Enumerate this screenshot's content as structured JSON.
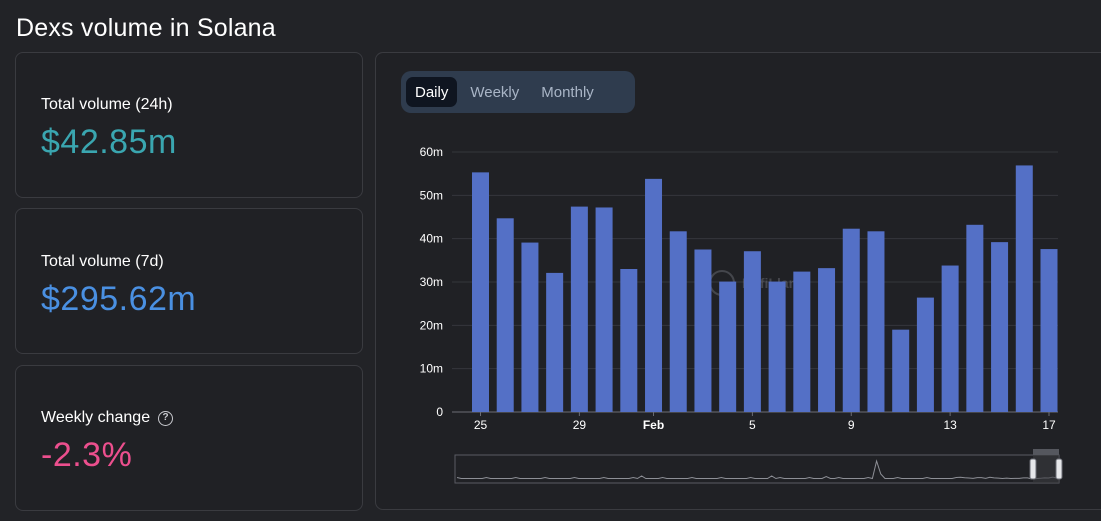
{
  "page": {
    "title": "Dexs volume in Solana"
  },
  "stats": [
    {
      "label": "Total volume (24h)",
      "value": "$42.85m",
      "color": "#3aa6b0"
    },
    {
      "label": "Total volume (7d)",
      "value": "$295.62m",
      "color": "#4a90e2"
    },
    {
      "label": "Weekly change",
      "value": "-2.3%",
      "color": "#ec4f8e",
      "icon": "help-circle-icon"
    }
  ],
  "tabs": [
    {
      "label": "Daily",
      "active": true
    },
    {
      "label": "Weekly",
      "active": false
    },
    {
      "label": "Monthly",
      "active": false
    }
  ],
  "chart_data": {
    "type": "bar",
    "title": "",
    "xlabel": "",
    "ylabel": "",
    "ylim": [
      0,
      60
    ],
    "yticks": [
      "0",
      "10m",
      "20m",
      "30m",
      "40m",
      "50m",
      "60m"
    ],
    "ytick_values": [
      0,
      10,
      20,
      30,
      40,
      50,
      60
    ],
    "grid": true,
    "color": "#5470c6",
    "categories": [
      "Jan 25",
      "Jan 26",
      "Jan 27",
      "Jan 28",
      "Jan 29",
      "Jan 30",
      "Jan 31",
      "Feb 1",
      "Feb 2",
      "Feb 3",
      "Feb 4",
      "Feb 5",
      "Feb 6",
      "Feb 7",
      "Feb 8",
      "Feb 9",
      "Feb 10",
      "Feb 11",
      "Feb 12",
      "Feb 13",
      "Feb 14",
      "Feb 15",
      "Feb 16",
      "Feb 17"
    ],
    "values": [
      55.3,
      44.7,
      39.1,
      32.1,
      47.4,
      47.2,
      33.0,
      53.8,
      41.7,
      37.5,
      30.1,
      37.1,
      30.1,
      32.4,
      33.2,
      42.3,
      41.7,
      19.0,
      26.4,
      33.8,
      43.2,
      39.2,
      56.9,
      37.6
    ],
    "xtick_labels": [
      {
        "index": 0,
        "label": "25",
        "bold": false
      },
      {
        "index": 4,
        "label": "29",
        "bold": false
      },
      {
        "index": 7,
        "label": "Feb",
        "bold": true
      },
      {
        "index": 11,
        "label": "5",
        "bold": false
      },
      {
        "index": 15,
        "label": "9",
        "bold": false
      },
      {
        "index": 19,
        "label": "13",
        "bold": false
      },
      {
        "index": 23,
        "label": "17",
        "bold": false
      }
    ],
    "watermark": "DefiLlama"
  }
}
